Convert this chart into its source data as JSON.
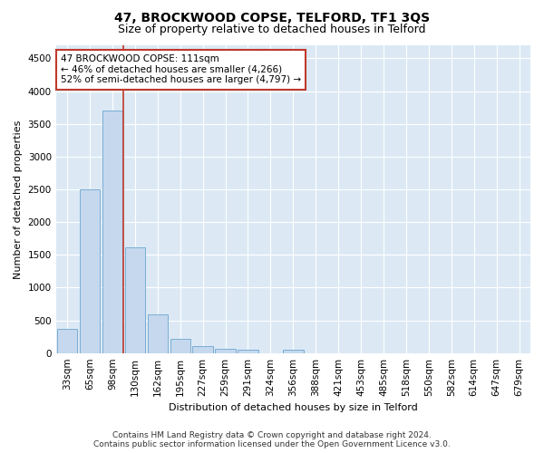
{
  "title_line1": "47, BROCKWOOD COPSE, TELFORD, TF1 3QS",
  "title_line2": "Size of property relative to detached houses in Telford",
  "xlabel": "Distribution of detached houses by size in Telford",
  "ylabel": "Number of detached properties",
  "categories": [
    "33sqm",
    "65sqm",
    "98sqm",
    "130sqm",
    "162sqm",
    "195sqm",
    "227sqm",
    "259sqm",
    "291sqm",
    "324sqm",
    "356sqm",
    "388sqm",
    "421sqm",
    "453sqm",
    "485sqm",
    "518sqm",
    "550sqm",
    "582sqm",
    "614sqm",
    "647sqm",
    "679sqm"
  ],
  "values": [
    370,
    2500,
    3700,
    1620,
    590,
    220,
    100,
    70,
    50,
    0,
    55,
    0,
    0,
    0,
    0,
    0,
    0,
    0,
    0,
    0,
    0
  ],
  "bar_color": "#c5d8ed",
  "bar_edge_color": "#7aadd4",
  "vline_x_index": 2,
  "vline_color": "#c0392b",
  "annotation_line1": "47 BROCKWOOD COPSE: 111sqm",
  "annotation_line2": "← 46% of detached houses are smaller (4,266)",
  "annotation_line3": "52% of semi-detached houses are larger (4,797) →",
  "annotation_box_color": "#c0392b",
  "ylim": [
    0,
    4700
  ],
  "yticks": [
    0,
    500,
    1000,
    1500,
    2000,
    2500,
    3000,
    3500,
    4000,
    4500
  ],
  "footer_line1": "Contains HM Land Registry data © Crown copyright and database right 2024.",
  "footer_line2": "Contains public sector information licensed under the Open Government Licence v3.0.",
  "fig_bg_color": "#ffffff",
  "plot_bg_color": "#dce9f5",
  "grid_color": "#ffffff",
  "title_fontsize": 10,
  "subtitle_fontsize": 9,
  "axis_label_fontsize": 8,
  "tick_fontsize": 7.5,
  "annotation_fontsize": 7.5,
  "footer_fontsize": 6.5
}
